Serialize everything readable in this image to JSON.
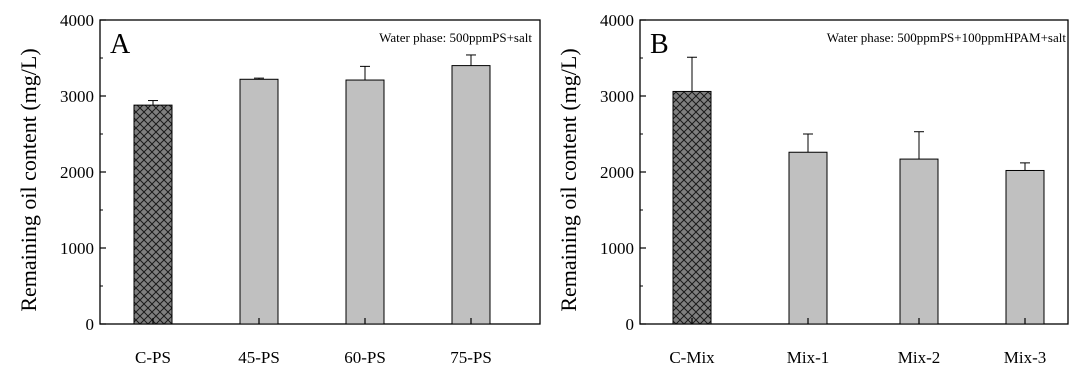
{
  "chart_data": [
    {
      "type": "bar",
      "panel_label": "A",
      "annotation": "Water phase: 500ppmPS+salt",
      "ylabel": "Remaining oil content (mg/L)",
      "xlabel": "",
      "ylim": [
        0,
        4000
      ],
      "yticks": [
        0,
        1000,
        2000,
        3000,
        4000
      ],
      "categories": [
        "C-PS",
        "45-PS",
        "60-PS",
        "75-PS"
      ],
      "values": [
        2880,
        3220,
        3210,
        3400
      ],
      "errors": [
        60,
        15,
        180,
        140
      ],
      "patterns": [
        "crosshatch",
        "solid",
        "solid",
        "solid"
      ],
      "grid": false
    },
    {
      "type": "bar",
      "panel_label": "B",
      "annotation": "Water phase: 500ppmPS+100ppmHPAM+salt",
      "ylabel": "Remaining oil content (mg/L)",
      "xlabel": "",
      "ylim": [
        0,
        4000
      ],
      "yticks": [
        0,
        1000,
        2000,
        3000,
        4000
      ],
      "categories": [
        "C-Mix",
        "Mix-1",
        "Mix-2",
        "Mix-3"
      ],
      "values": [
        3060,
        2260,
        2170,
        2020
      ],
      "errors": [
        450,
        240,
        360,
        100
      ],
      "patterns": [
        "crosshatch",
        "solid",
        "solid",
        "solid"
      ],
      "grid": false
    }
  ],
  "colors": {
    "bar_fill": "#c0c0c0",
    "hatch_fill": "#7f7f7f",
    "line": "#000000"
  }
}
